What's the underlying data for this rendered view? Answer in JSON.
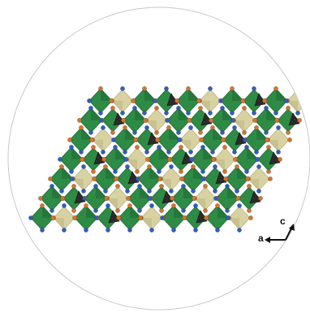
{
  "figure": {
    "kind": "crystal structure polyhedral view",
    "background_color": "#ffffff",
    "circle_outline_color": "#c8c8c8",
    "polyhedra_colors": {
      "green_octahedra": "#2e8b46",
      "green_octahedra_dark": "#1f6a33",
      "tan_octahedra": "#d8d2a3",
      "tan_octahedra_dark": "#b9b27e",
      "black_tetrahedra": "#2b2b2b"
    },
    "atom_colors": {
      "orange_atoms": "#d8752a",
      "blue_atoms": "#2f5fbf"
    }
  },
  "axes": {
    "a_label": "a",
    "c_label": "c",
    "arrow_color": "#111111"
  }
}
